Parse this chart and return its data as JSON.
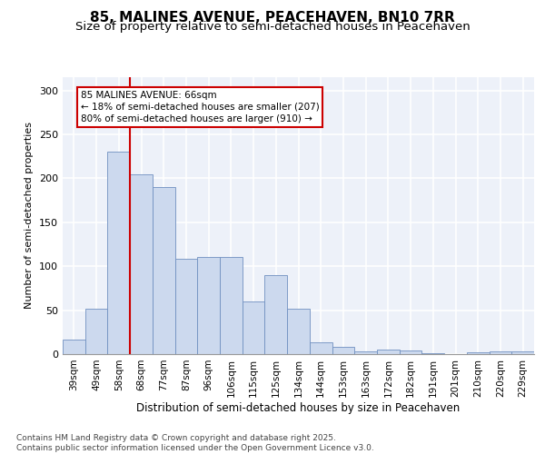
{
  "title_line1": "85, MALINES AVENUE, PEACEHAVEN, BN10 7RR",
  "title_line2": "Size of property relative to semi-detached houses in Peacehaven",
  "xlabel": "Distribution of semi-detached houses by size in Peacehaven",
  "ylabel": "Number of semi-detached properties",
  "bar_labels": [
    "39sqm",
    "49sqm",
    "58sqm",
    "68sqm",
    "77sqm",
    "87sqm",
    "96sqm",
    "106sqm",
    "115sqm",
    "125sqm",
    "134sqm",
    "144sqm",
    "153sqm",
    "163sqm",
    "172sqm",
    "182sqm",
    "191sqm",
    "201sqm",
    "210sqm",
    "220sqm",
    "229sqm"
  ],
  "bar_values": [
    17,
    52,
    230,
    205,
    190,
    108,
    110,
    110,
    60,
    90,
    52,
    13,
    8,
    3,
    5,
    4,
    1,
    0,
    2,
    3,
    3
  ],
  "bar_color": "#ccd9ee",
  "bar_edge_color": "#7090c0",
  "vline_x": 3.0,
  "vline_color": "#cc0000",
  "annotation_text": "85 MALINES AVENUE: 66sqm\n← 18% of semi-detached houses are smaller (207)\n80% of semi-detached houses are larger (910) →",
  "annotation_box_color": "#cc0000",
  "ylim": [
    0,
    315
  ],
  "yticks": [
    0,
    50,
    100,
    150,
    200,
    250,
    300
  ],
  "background_color": "#edf1f9",
  "grid_color": "#ffffff",
  "footer_text": "Contains HM Land Registry data © Crown copyright and database right 2025.\nContains public sector information licensed under the Open Government Licence v3.0.",
  "title_fontsize": 11,
  "subtitle_fontsize": 9.5,
  "tick_fontsize": 7.5,
  "xlabel_fontsize": 8.5,
  "ylabel_fontsize": 8,
  "footer_fontsize": 6.5
}
